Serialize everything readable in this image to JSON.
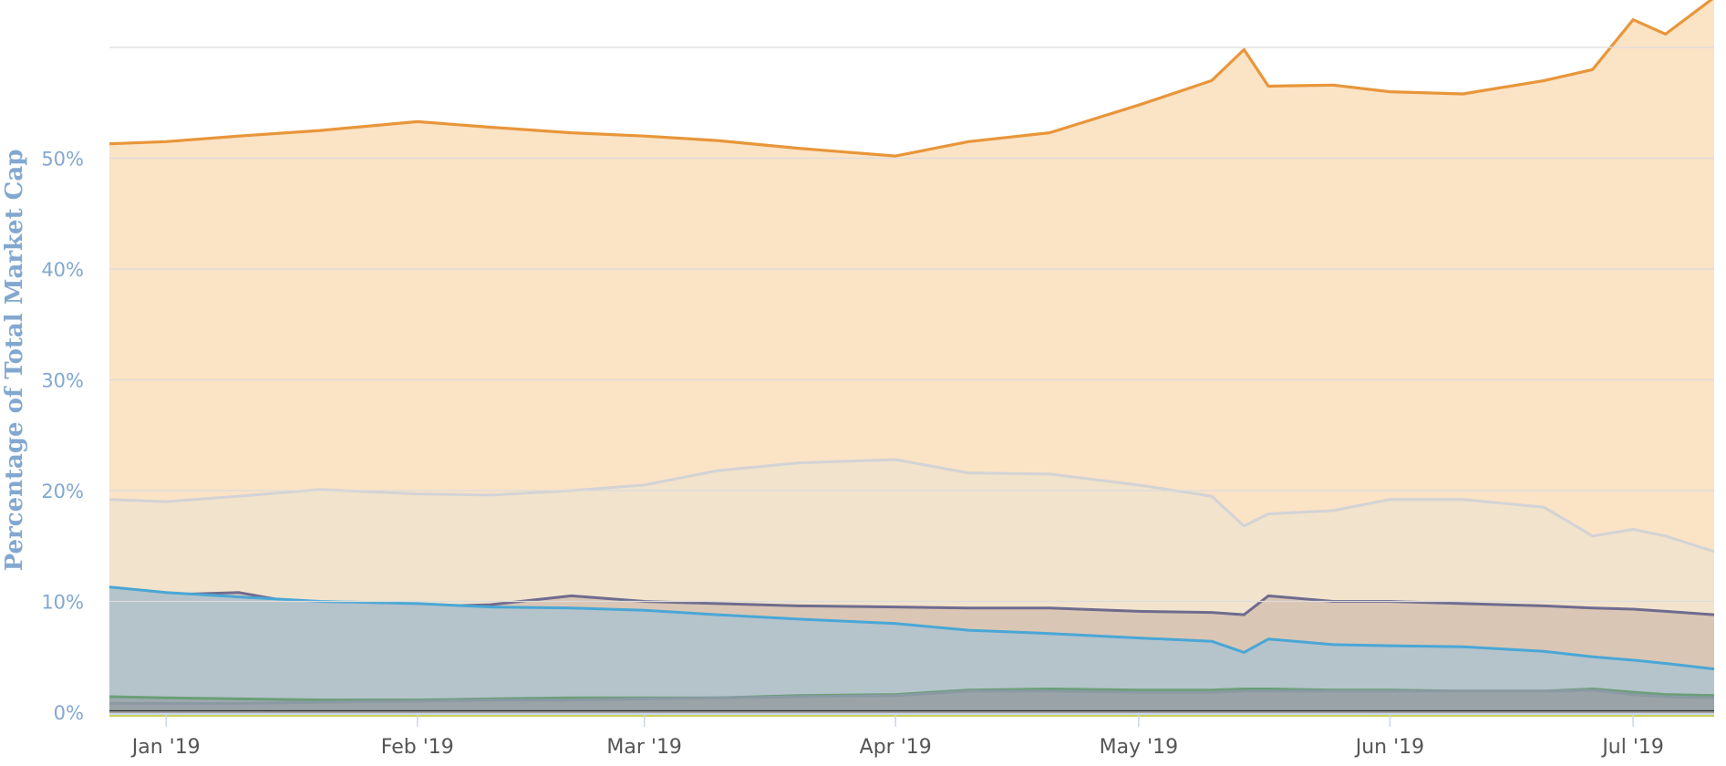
{
  "chart_data": {
    "type": "area",
    "ylabel": "Percentage of Total Market Cap",
    "xlabel": "",
    "ylim": [
      0,
      63
    ],
    "yticks": [
      "0%",
      "10%",
      "20%",
      "30%",
      "40%",
      "50%"
    ],
    "ytick_values": [
      0,
      10,
      20,
      30,
      40,
      50
    ],
    "grid": true,
    "x_tick_labels": [
      "Jan '19",
      "Feb '19",
      "Mar '19",
      "Apr '19",
      "May '19",
      "Jun '19",
      "Jul '19"
    ],
    "x_tick_dates": [
      "2019-01-01",
      "2019-02-01",
      "2019-03-01",
      "2019-04-01",
      "2019-05-01",
      "2019-06-01",
      "2019-07-01"
    ],
    "x_range": [
      "2018-12-25",
      "2019-07-11"
    ],
    "x": [
      "2018-12-25",
      "2019-01-01",
      "2019-01-10",
      "2019-01-20",
      "2019-02-01",
      "2019-02-10",
      "2019-02-20",
      "2019-03-01",
      "2019-03-10",
      "2019-03-20",
      "2019-04-01",
      "2019-04-10",
      "2019-04-20",
      "2019-05-01",
      "2019-05-10",
      "2019-05-14",
      "2019-05-17",
      "2019-05-25",
      "2019-06-01",
      "2019-06-10",
      "2019-06-20",
      "2019-06-26",
      "2019-07-01",
      "2019-07-05",
      "2019-07-11"
    ],
    "series": [
      {
        "color": "#e8963a",
        "fill": "#fbe3c6",
        "values": [
          51.3,
          51.5,
          52.0,
          52.5,
          53.3,
          52.8,
          52.3,
          52.0,
          51.6,
          50.9,
          50.2,
          51.5,
          52.3,
          54.8,
          57.0,
          59.8,
          56.5,
          56.6,
          56.0,
          55.8,
          57.0,
          58.0,
          62.5,
          61.2,
          64.5
        ]
      },
      {
        "color": "#d3d3d5",
        "fill": "#f2e3cc",
        "values": [
          19.2,
          19.0,
          19.5,
          20.1,
          19.7,
          19.6,
          20.0,
          20.5,
          21.8,
          22.5,
          22.8,
          21.6,
          21.5,
          20.5,
          19.5,
          16.8,
          17.9,
          18.2,
          19.2,
          19.2,
          18.5,
          15.9,
          16.5,
          15.9,
          14.5
        ]
      },
      {
        "color": "#6f6b8f",
        "fill": "#d9c6b4",
        "values": [
          9.8,
          10.6,
          10.8,
          9.5,
          9.5,
          9.7,
          10.5,
          10.0,
          9.8,
          9.6,
          9.5,
          9.4,
          9.4,
          9.1,
          9.0,
          8.8,
          10.5,
          10.0,
          10.0,
          9.8,
          9.6,
          9.4,
          9.3,
          9.1,
          8.8
        ]
      },
      {
        "color": "#49a7d6",
        "fill": "#b5c3cb",
        "values": [
          11.3,
          10.8,
          10.4,
          10.0,
          9.8,
          9.5,
          9.4,
          9.2,
          8.8,
          8.4,
          8.0,
          7.4,
          7.1,
          6.7,
          6.4,
          5.4,
          6.6,
          6.1,
          6.0,
          5.9,
          5.5,
          5.0,
          4.7,
          4.4,
          3.9
        ]
      },
      {
        "color": "#6a9f77",
        "fill": "#9faab0",
        "values": [
          1.4,
          1.3,
          1.2,
          1.1,
          1.1,
          1.2,
          1.3,
          1.3,
          1.3,
          1.5,
          1.6,
          2.0,
          2.1,
          2.0,
          2.0,
          2.1,
          2.1,
          2.0,
          2.0,
          1.9,
          1.9,
          2.1,
          1.8,
          1.6,
          1.5
        ]
      },
      {
        "color": "#8a9aa3",
        "fill": "#9aa3a7",
        "values": [
          0.8,
          0.8,
          0.8,
          0.9,
          1.0,
          1.1,
          1.1,
          1.2,
          1.3,
          1.4,
          1.5,
          1.9,
          1.9,
          1.8,
          1.8,
          1.9,
          1.9,
          1.9,
          1.9,
          1.9,
          1.9,
          2.0,
          1.6,
          1.4,
          1.3
        ]
      },
      {
        "color": "#2b2b2b",
        "fill": "#8f9490",
        "values": [
          0.05,
          0.05,
          0.05,
          0.05,
          0.05,
          0.05,
          0.05,
          0.05,
          0.05,
          0.05,
          0.05,
          0.05,
          0.05,
          0.05,
          0.05,
          0.05,
          0.05,
          0.05,
          0.05,
          0.05,
          0.05,
          0.05,
          0.05,
          0.05,
          0.05
        ]
      },
      {
        "color": "#c8d25a",
        "fill": "#c8d25a",
        "values": [
          -0.3,
          -0.3,
          -0.3,
          -0.3,
          -0.3,
          -0.3,
          -0.3,
          -0.3,
          -0.3,
          -0.3,
          -0.3,
          -0.3,
          -0.3,
          -0.3,
          -0.3,
          -0.3,
          -0.3,
          -0.3,
          -0.3,
          -0.3,
          -0.3,
          -0.3,
          -0.3,
          -0.3,
          -0.3
        ]
      }
    ]
  }
}
